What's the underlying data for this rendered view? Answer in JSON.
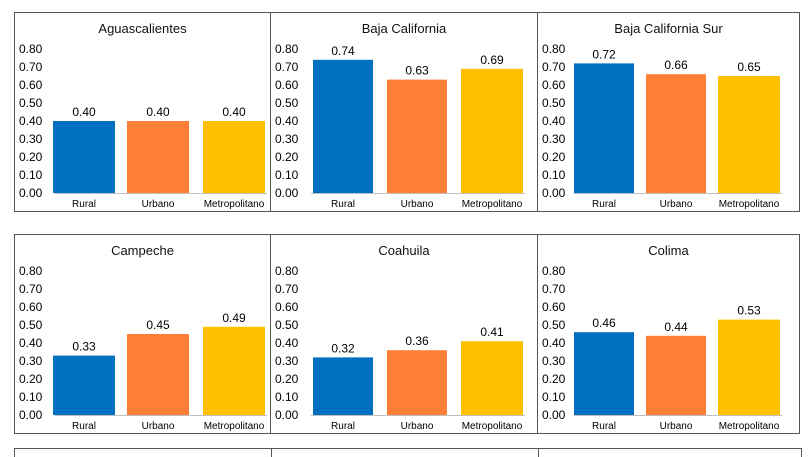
{
  "colors": {
    "rural": "#0070c0",
    "urbano": "#ff7f36",
    "metropolitano": "#ffc000"
  },
  "chart_data": [
    {
      "type": "bar",
      "title": "Aguascalientes",
      "categories": [
        "Rural",
        "Urbano",
        "Metropolitano"
      ],
      "values": [
        0.4,
        0.4,
        0.4
      ],
      "labels": [
        "0.40",
        "0.40",
        "0.40"
      ],
      "ylim": [
        0,
        0.8
      ],
      "yticks": [
        "0.00",
        "0.10",
        "0.20",
        "0.30",
        "0.40",
        "0.50",
        "0.60",
        "0.70",
        "0.80"
      ]
    },
    {
      "type": "bar",
      "title": "Baja California",
      "categories": [
        "Rural",
        "Urbano",
        "Metropolitano"
      ],
      "values": [
        0.74,
        0.63,
        0.69
      ],
      "labels": [
        "0.74",
        "0.63",
        "0.69"
      ],
      "ylim": [
        0,
        0.8
      ],
      "yticks": [
        "0.00",
        "0.10",
        "0.20",
        "0.30",
        "0.40",
        "0.50",
        "0.60",
        "0.70",
        "0.80"
      ]
    },
    {
      "type": "bar",
      "title": "Baja California Sur",
      "categories": [
        "Rural",
        "Urbano",
        "Metropolitano"
      ],
      "values": [
        0.72,
        0.66,
        0.65
      ],
      "labels": [
        "0.72",
        "0.66",
        "0.65"
      ],
      "ylim": [
        0,
        0.8
      ],
      "yticks": [
        "0.00",
        "0.10",
        "0.20",
        "0.30",
        "0.40",
        "0.50",
        "0.60",
        "0.70",
        "0.80"
      ]
    },
    {
      "type": "bar",
      "title": "Campeche",
      "categories": [
        "Rural",
        "Urbano",
        "Metropolitano"
      ],
      "values": [
        0.33,
        0.45,
        0.49
      ],
      "labels": [
        "0.33",
        "0.45",
        "0.49"
      ],
      "ylim": [
        0,
        0.8
      ],
      "yticks": [
        "0.00",
        "0.10",
        "0.20",
        "0.30",
        "0.40",
        "0.50",
        "0.60",
        "0.70",
        "0.80"
      ]
    },
    {
      "type": "bar",
      "title": "Coahuila",
      "categories": [
        "Rural",
        "Urbano",
        "Metropolitano"
      ],
      "values": [
        0.32,
        0.36,
        0.41
      ],
      "labels": [
        "0.32",
        "0.36",
        "0.41"
      ],
      "ylim": [
        0,
        0.8
      ],
      "yticks": [
        "0.00",
        "0.10",
        "0.20",
        "0.30",
        "0.40",
        "0.50",
        "0.60",
        "0.70",
        "0.80"
      ]
    },
    {
      "type": "bar",
      "title": "Colima",
      "categories": [
        "Rural",
        "Urbano",
        "Metropolitano"
      ],
      "values": [
        0.46,
        0.44,
        0.53
      ],
      "labels": [
        "0.46",
        "0.44",
        "0.53"
      ],
      "ylim": [
        0,
        0.8
      ],
      "yticks": [
        "0.00",
        "0.10",
        "0.20",
        "0.30",
        "0.40",
        "0.50",
        "0.60",
        "0.70",
        "0.80"
      ]
    }
  ]
}
